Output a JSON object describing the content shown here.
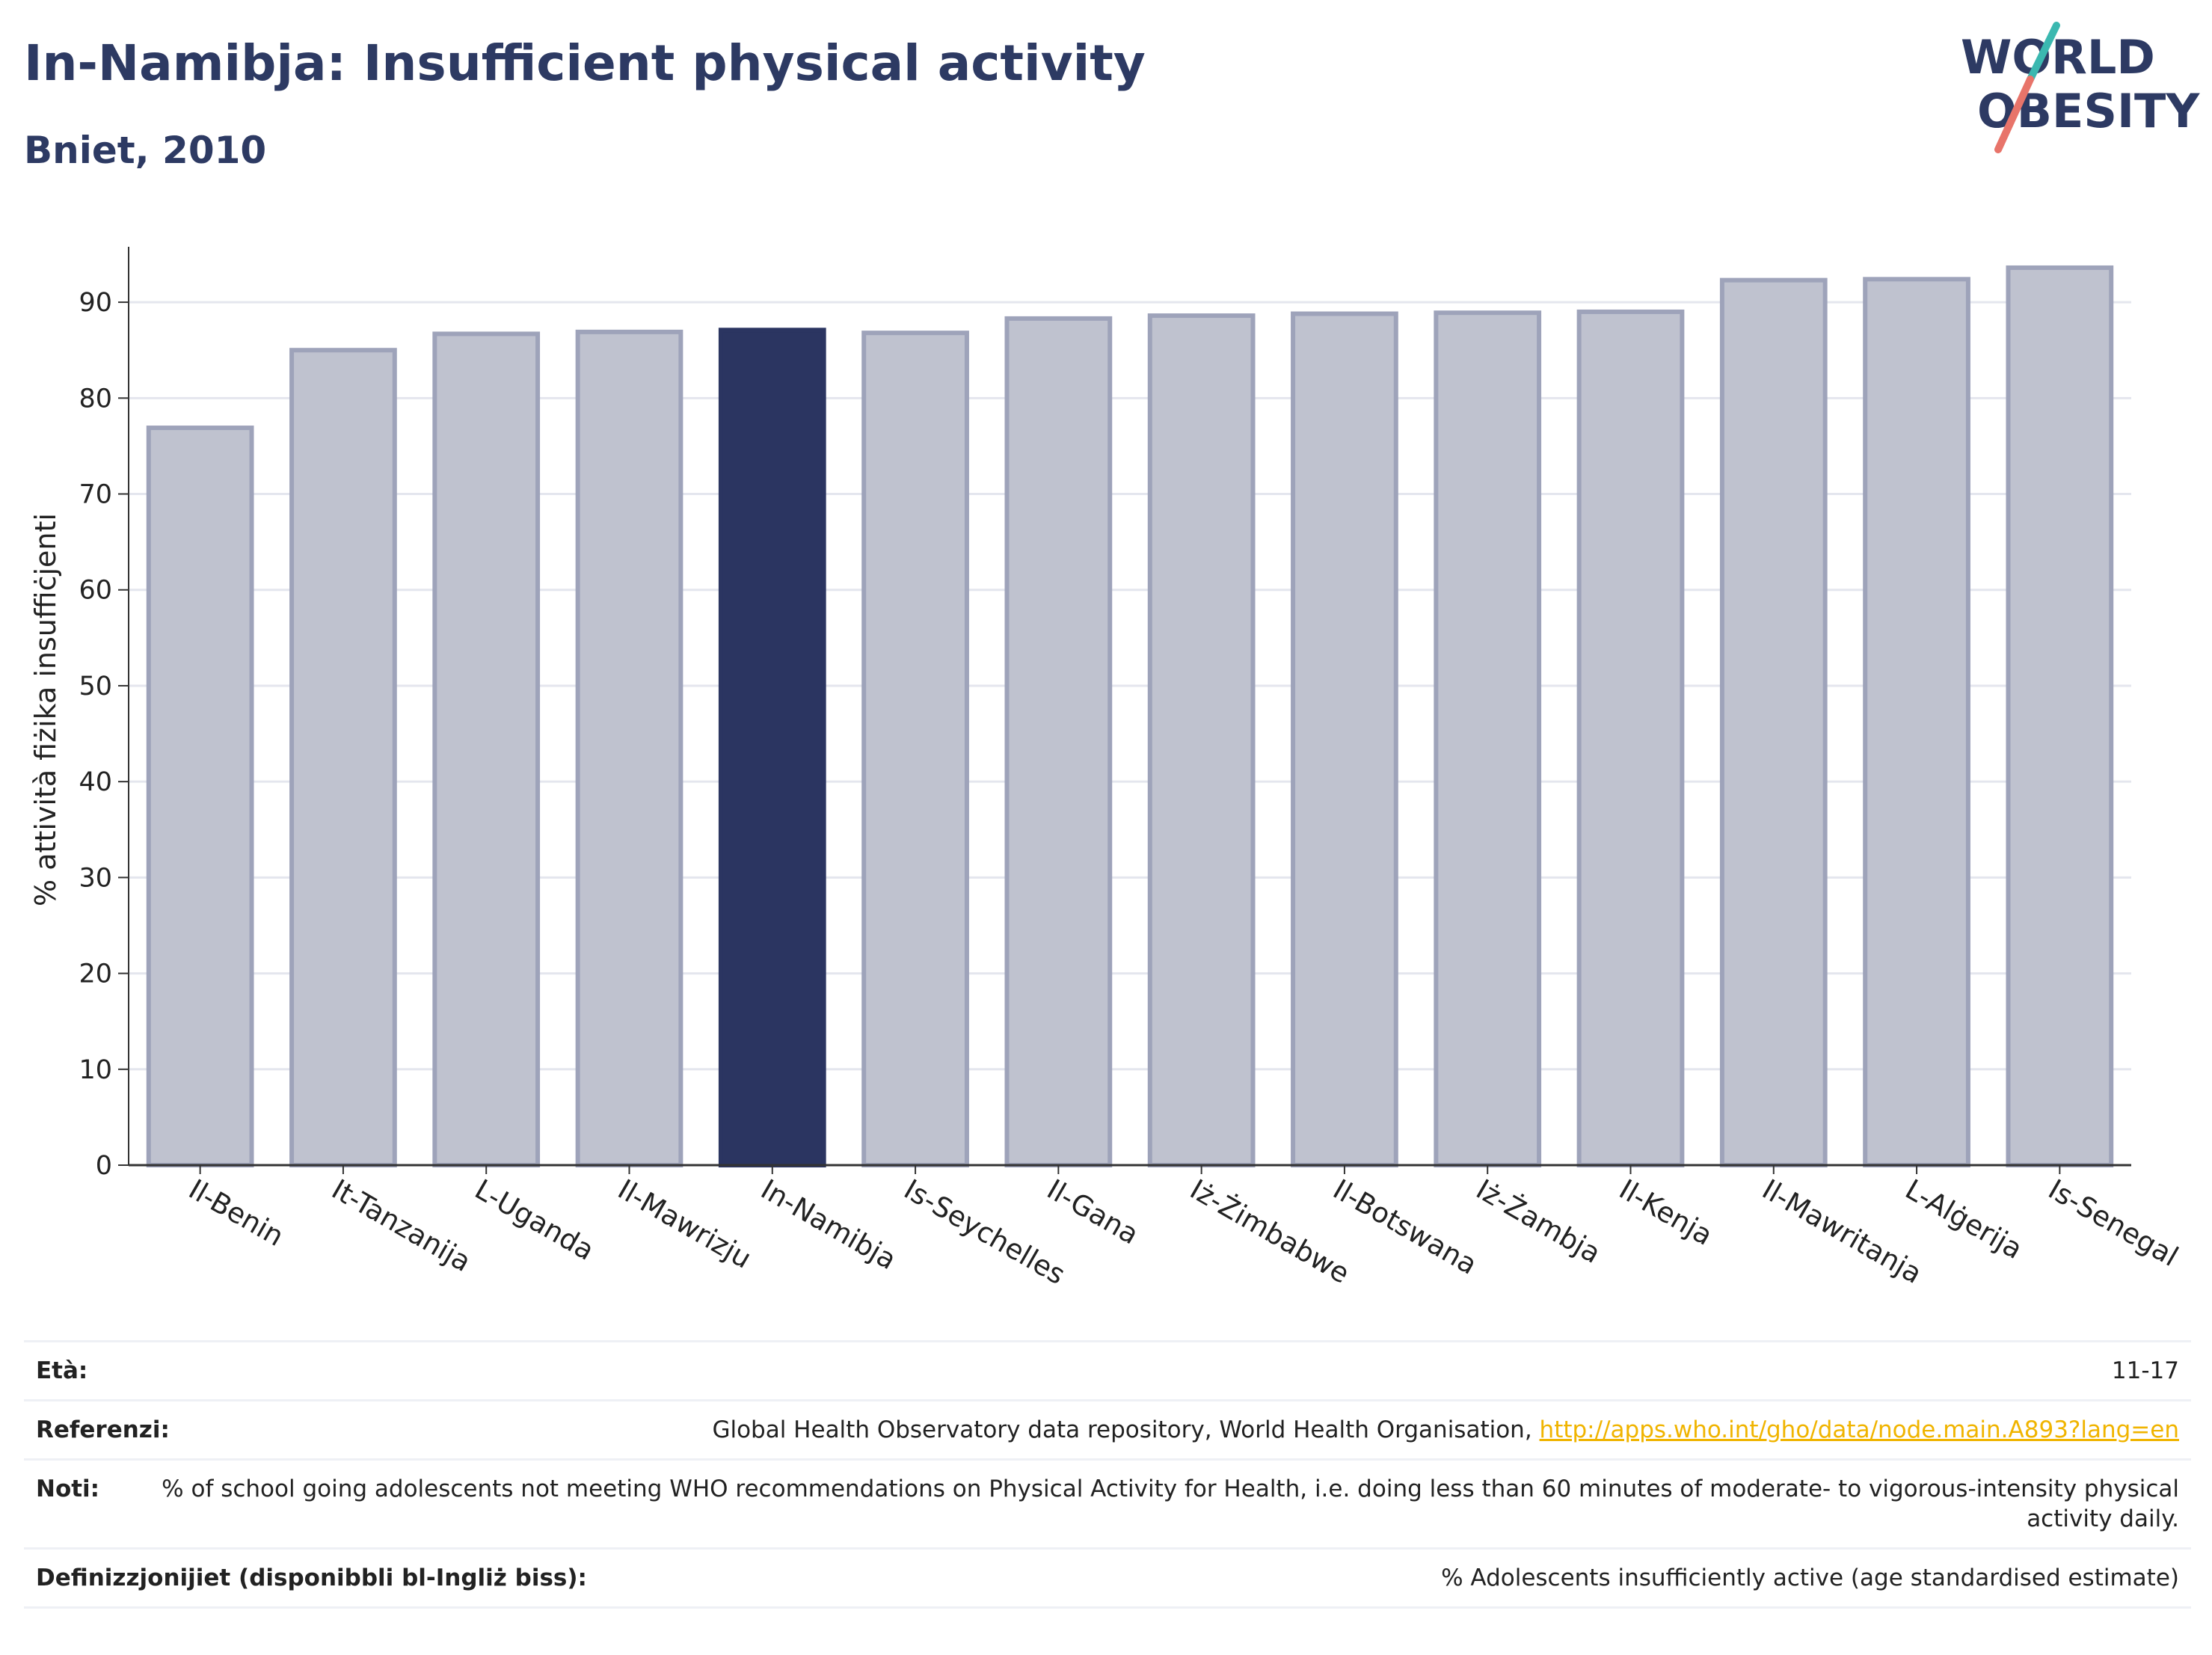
{
  "header": {
    "title": "In-Namibja: Insufficient physical activity",
    "subtitle": "Bniet, 2010"
  },
  "logo": {
    "line1": "WORLD",
    "line2": "OBESITY"
  },
  "chart_data": {
    "type": "bar",
    "categories": [
      "Il-Benin",
      "It-Tanzanija",
      "L-Uganda",
      "Il-Mawrizju",
      "In-Namibja",
      "Is-Seychelles",
      "Il-Gana",
      "Iż-Żimbabwe",
      "Il-Botswana",
      "Iż-Żambja",
      "Il-Kenja",
      "Il-Mawritanja",
      "L-Alġerija",
      "Is-Senegal"
    ],
    "values": [
      76.9,
      85.0,
      86.7,
      86.9,
      87.1,
      86.8,
      88.3,
      88.6,
      88.8,
      88.9,
      89.0,
      92.3,
      92.4,
      93.6
    ],
    "highlight_index": 4,
    "ylabel": "% attività fiżika insuffiċjenti",
    "xlabel": "",
    "ylim": [
      0,
      95
    ],
    "yticks": [
      0,
      10,
      20,
      30,
      40,
      50,
      60,
      70,
      80,
      90
    ],
    "grid": true,
    "colors": {
      "bar": "#bfc2cf",
      "bar_edge": "#9ea3ba",
      "highlight": "#2b3561",
      "axis": "#333333",
      "grid": "#e4e6ee"
    }
  },
  "info": {
    "rows": [
      {
        "key": "Età:",
        "value": "11-17"
      },
      {
        "key": "Referenzi:",
        "value": "Global Health Observatory data repository, World Health Organisation, ",
        "link": "http://apps.who.int/gho/data/node.main.A893?lang=en"
      },
      {
        "key": "Noti:",
        "value": "% of school going adolescents not meeting WHO recommendations on Physical Activity for Health, i.e. doing less than 60 minutes of moderate- to vigorous-intensity physical activity daily."
      },
      {
        "key": "Definizzjonijiet (disponibbli bl-Ingliż biss):",
        "value": "% Adolescents insufficiently active (age standardised estimate)"
      }
    ]
  },
  "colors": {
    "title": "#2d3a63",
    "link": "#f0b400",
    "logo_teal": "#3bb8b0",
    "logo_coral": "#e8746a"
  }
}
